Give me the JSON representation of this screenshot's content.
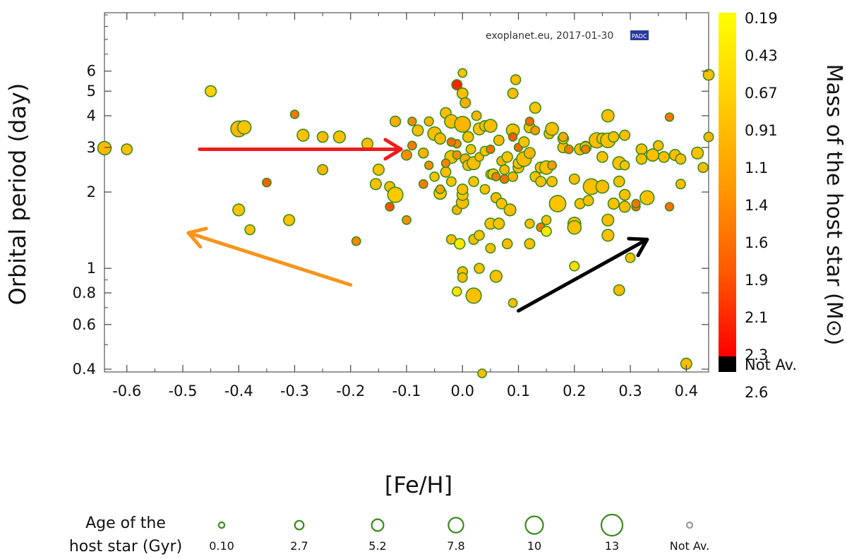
{
  "chart_data": {
    "type": "scatter",
    "xlabel": "[Fe/H]",
    "ylabel": "Orbital period (day)",
    "xlim": [
      -0.64,
      0.44
    ],
    "ylim": [
      0.39,
      10.2
    ],
    "yscale": "log",
    "xticks": [
      "-0.6",
      "-0.5",
      "-0.4",
      "-0.3",
      "-0.2",
      "-0.1",
      "0.0",
      "0.1",
      "0.2",
      "0.3",
      "0.4"
    ],
    "xtick_values": [
      -0.6,
      -0.5,
      -0.4,
      -0.3,
      -0.2,
      -0.1,
      0.0,
      0.1,
      0.2,
      0.3,
      0.4
    ],
    "yticks": [
      "6",
      "5",
      "4",
      "3",
      "2",
      "1",
      "0.8",
      "0.6",
      "0.4"
    ],
    "ytick_values": [
      6,
      5,
      4,
      3,
      2,
      1,
      0.8,
      0.6,
      0.4
    ],
    "watermark": "exoplanet.eu, 2017-01-30",
    "watermark_logo": "PADC",
    "colorbar": {
      "title": "Mass of the host star (M⊙)",
      "labels": [
        "0.19",
        "0.43",
        "0.67",
        "0.91",
        "1.1",
        "1.4",
        "1.6",
        "1.9",
        "2.1",
        "2.3",
        "2.6",
        "Not Av."
      ],
      "colors": [
        "#ffff00",
        "#ffd000",
        "#ff9a00",
        "#ff5a00",
        "#ff0000",
        "#000000"
      ]
    },
    "size_legend": {
      "title_line1": "Age of the",
      "title_line2": "host star (Gyr)",
      "entries": [
        {
          "label": "0.10",
          "age": 0.1
        },
        {
          "label": "2.7",
          "age": 2.7
        },
        {
          "label": "5.2",
          "age": 5.2
        },
        {
          "label": "7.8",
          "age": 7.8
        },
        {
          "label": "10",
          "age": 10
        },
        {
          "label": "13",
          "age": 13
        },
        {
          "label": "Not Av.",
          "age": null
        }
      ]
    },
    "arrows": [
      {
        "color": "#ee1c1c",
        "from": [
          -0.47,
          2.95
        ],
        "to": [
          -0.11,
          2.95
        ]
      },
      {
        "color": "#f7941d",
        "from": [
          -0.2,
          0.86
        ],
        "to": [
          -0.49,
          1.38
        ]
      },
      {
        "color": "#000000",
        "from": [
          0.1,
          0.68
        ],
        "to": [
          0.33,
          1.3
        ]
      }
    ],
    "points": [
      [
        -0.64,
        2.98,
        0.78,
        6.5
      ],
      [
        -0.6,
        2.95,
        0.72,
        4.2
      ],
      [
        -0.45,
        5.0,
        0.6,
        4.5
      ],
      [
        -0.4,
        3.55,
        0.78,
        8.5
      ],
      [
        -0.39,
        3.6,
        0.7,
        6.5
      ],
      [
        -0.4,
        1.7,
        0.7,
        5.0
      ],
      [
        -0.38,
        1.42,
        0.7,
        3.5
      ],
      [
        -0.35,
        2.18,
        1.55,
        2.5
      ],
      [
        -0.3,
        4.05,
        1.35,
        2.2
      ],
      [
        -0.31,
        1.55,
        0.7,
        4.5
      ],
      [
        -0.285,
        3.35,
        0.72,
        5.2
      ],
      [
        -0.25,
        3.3,
        0.75,
        4.2
      ],
      [
        -0.25,
        2.45,
        0.8,
        3.8
      ],
      [
        -0.22,
        3.3,
        0.72,
        5.2
      ],
      [
        -0.19,
        1.28,
        1.2,
        2.5
      ],
      [
        -0.17,
        3.1,
        0.75,
        4.5
      ],
      [
        -0.155,
        2.15,
        0.72,
        4.5
      ],
      [
        -0.15,
        2.45,
        0.7,
        4.5
      ],
      [
        -0.13,
        2.1,
        0.75,
        3.8
      ],
      [
        -0.13,
        1.75,
        1.7,
        2.5
      ],
      [
        -0.12,
        1.95,
        0.65,
        8.0
      ],
      [
        -0.12,
        3.8,
        0.85,
        4.0
      ],
      [
        -0.1,
        2.8,
        1.1,
        3.8
      ],
      [
        -0.09,
        3.8,
        1.15,
        2.2
      ],
      [
        -0.1,
        1.55,
        1.1,
        2.5
      ],
      [
        -0.09,
        3.05,
        1.3,
        2.5
      ],
      [
        -0.08,
        3.5,
        0.75,
        4.5
      ],
      [
        -0.07,
        2.85,
        0.8,
        3.5
      ],
      [
        -0.07,
        2.15,
        1.3,
        2.5
      ],
      [
        -0.06,
        2.55,
        1.1,
        2.2
      ],
      [
        -0.06,
        3.8,
        0.8,
        2.8
      ],
      [
        -0.05,
        2.3,
        0.7,
        3.0
      ],
      [
        -0.05,
        3.4,
        0.75,
        6.5
      ],
      [
        -0.04,
        1.98,
        0.65,
        5.5
      ],
      [
        -0.04,
        3.25,
        0.75,
        4.5
      ],
      [
        -0.04,
        2.05,
        0.95,
        2.5
      ],
      [
        -0.03,
        2.4,
        0.75,
        3.8
      ],
      [
        -0.03,
        4.1,
        0.75,
        4.2
      ],
      [
        -0.02,
        3.8,
        0.75,
        6.5
      ],
      [
        -0.02,
        2.75,
        0.72,
        6.0
      ],
      [
        -0.02,
        1.3,
        0.75,
        3.2
      ],
      [
        -0.02,
        2.2,
        0.7,
        3.2
      ],
      [
        -0.01,
        2.8,
        1.1,
        2.3
      ],
      [
        -0.01,
        3.1,
        1.2,
        2.2
      ],
      [
        -0.01,
        5.3,
        2.2,
        3.8
      ],
      [
        -0.01,
        1.7,
        0.8,
        3.0
      ],
      [
        -0.005,
        1.25,
        0.4,
        4.0
      ],
      [
        0.0,
        3.7,
        0.8,
        8.5
      ],
      [
        0.0,
        1.82,
        0.75,
        5.5
      ],
      [
        0.0,
        1.95,
        0.7,
        4.5
      ],
      [
        0.0,
        2.05,
        0.72,
        4.0
      ],
      [
        0.0,
        4.9,
        0.72,
        4.2
      ],
      [
        0.0,
        5.9,
        0.7,
        2.5
      ],
      [
        0.0,
        0.97,
        0.7,
        3.5
      ],
      [
        0.0,
        0.92,
        0.75,
        3.2
      ],
      [
        -0.01,
        0.81,
        0.45,
        3.0
      ],
      [
        0.005,
        4.5,
        0.85,
        3.8
      ],
      [
        0.005,
        2.7,
        0.85,
        3.8
      ],
      [
        0.01,
        3.3,
        0.72,
        4.2
      ],
      [
        0.01,
        2.55,
        0.75,
        4.0
      ],
      [
        0.015,
        2.95,
        0.7,
        3.2
      ],
      [
        0.02,
        1.3,
        0.75,
        3.5
      ],
      [
        0.02,
        0.78,
        0.72,
        8.0
      ],
      [
        0.02,
        2.2,
        0.7,
        3.5
      ],
      [
        0.02,
        2.6,
        0.75,
        6.0
      ],
      [
        0.025,
        4.0,
        0.8,
        3.2
      ],
      [
        0.03,
        1.35,
        0.7,
        3.5
      ],
      [
        0.03,
        2.75,
        0.75,
        2.5
      ],
      [
        0.03,
        3.5,
        0.9,
        2.5
      ],
      [
        0.03,
        3.55,
        0.7,
        5.2
      ],
      [
        0.03,
        1.0,
        0.7,
        3.5
      ],
      [
        0.035,
        0.385,
        0.75,
        2.5
      ],
      [
        0.04,
        3.65,
        0.75,
        4.0
      ],
      [
        0.04,
        2.9,
        0.7,
        3.2
      ],
      [
        0.04,
        2.05,
        0.72,
        3.2
      ],
      [
        0.05,
        3.65,
        0.75,
        6.0
      ],
      [
        0.05,
        2.95,
        1.4,
        2.2
      ],
      [
        0.05,
        2.35,
        0.85,
        3.0
      ],
      [
        0.05,
        1.5,
        0.7,
        4.5
      ],
      [
        0.05,
        1.2,
        0.72,
        3.2
      ],
      [
        0.055,
        2.35,
        0.72,
        4.2
      ],
      [
        0.06,
        0.93,
        0.72,
        5.2
      ],
      [
        0.06,
        1.9,
        0.75,
        3.8
      ],
      [
        0.065,
        3.2,
        0.75,
        3.8
      ],
      [
        0.065,
        1.5,
        0.7,
        4.5
      ],
      [
        0.07,
        2.65,
        0.8,
        3.2
      ],
      [
        0.07,
        1.8,
        0.72,
        4.0
      ],
      [
        0.075,
        2.25,
        1.4,
        2.5
      ],
      [
        0.075,
        2.45,
        0.75,
        3.2
      ],
      [
        0.08,
        2.75,
        0.7,
        4.0
      ],
      [
        0.08,
        1.25,
        0.75,
        3.5
      ],
      [
        0.085,
        1.7,
        0.75,
        5.0
      ],
      [
        0.09,
        3.5,
        0.72,
        6.0
      ],
      [
        0.09,
        2.3,
        0.8,
        3.2
      ],
      [
        0.09,
        4.9,
        0.75,
        3.8
      ],
      [
        0.09,
        0.73,
        0.75,
        2.5
      ],
      [
        0.095,
        5.55,
        0.75,
        3.5
      ],
      [
        0.1,
        3.0,
        1.5,
        2.2
      ],
      [
        0.1,
        2.5,
        0.72,
        4.2
      ],
      [
        0.1,
        2.6,
        0.72,
        4.0
      ],
      [
        0.11,
        2.7,
        0.75,
        7.5
      ],
      [
        0.11,
        3.15,
        0.7,
        4.0
      ],
      [
        0.12,
        3.6,
        0.72,
        4.5
      ],
      [
        0.12,
        2.85,
        0.8,
        4.5
      ],
      [
        0.12,
        1.5,
        0.72,
        3.0
      ],
      [
        0.12,
        3.8,
        1.5,
        2.2
      ],
      [
        0.12,
        1.25,
        0.72,
        3.8
      ],
      [
        0.13,
        4.3,
        0.7,
        4.5
      ],
      [
        0.13,
        2.3,
        0.72,
        3.8
      ],
      [
        0.14,
        2.5,
        0.72,
        4.5
      ],
      [
        0.14,
        2.2,
        0.72,
        3.8
      ],
      [
        0.14,
        1.45,
        1.3,
        2.5
      ],
      [
        0.15,
        1.55,
        0.7,
        3.0
      ],
      [
        0.15,
        1.4,
        0.4,
        3.5
      ],
      [
        0.15,
        2.5,
        0.72,
        6.5
      ],
      [
        0.155,
        3.4,
        0.72,
        3.8
      ],
      [
        0.16,
        3.55,
        0.75,
        6.0
      ],
      [
        0.16,
        2.2,
        0.72,
        3.8
      ],
      [
        0.17,
        1.8,
        0.7,
        9.0
      ],
      [
        0.18,
        3.0,
        0.75,
        4.2
      ],
      [
        0.18,
        3.25,
        0.72,
        4.0
      ],
      [
        0.19,
        2.95,
        1.3,
        2.5
      ],
      [
        0.2,
        1.5,
        0.72,
        6.0
      ],
      [
        0.2,
        1.45,
        0.72,
        6.5
      ],
      [
        0.2,
        2.25,
        0.75,
        3.8
      ],
      [
        0.2,
        1.02,
        0.5,
        3.2
      ],
      [
        0.21,
        1.8,
        0.72,
        3.8
      ],
      [
        0.21,
        2.95,
        0.75,
        4.5
      ],
      [
        0.22,
        3.05,
        1.2,
        2.5
      ],
      [
        0.22,
        3.0,
        0.72,
        4.5
      ],
      [
        0.225,
        1.85,
        0.72,
        3.8
      ],
      [
        0.23,
        2.1,
        0.72,
        8.5
      ],
      [
        0.24,
        3.2,
        0.75,
        8.0
      ],
      [
        0.25,
        3.25,
        0.72,
        4.5
      ],
      [
        0.25,
        2.1,
        0.75,
        6.0
      ],
      [
        0.25,
        2.75,
        0.72,
        4.2
      ],
      [
        0.26,
        1.35,
        0.72,
        5.0
      ],
      [
        0.26,
        1.55,
        0.75,
        5.0
      ],
      [
        0.26,
        3.2,
        0.72,
        7.5
      ],
      [
        0.26,
        4.0,
        0.75,
        5.5
      ],
      [
        0.27,
        1.8,
        0.72,
        4.5
      ],
      [
        0.27,
        3.3,
        0.72,
        4.0
      ],
      [
        0.28,
        2.2,
        0.72,
        4.2
      ],
      [
        0.28,
        2.6,
        0.72,
        6.0
      ],
      [
        0.28,
        0.82,
        0.75,
        4.2
      ],
      [
        0.29,
        2.55,
        0.7,
        3.0
      ],
      [
        0.29,
        3.35,
        0.75,
        3.8
      ],
      [
        0.29,
        1.75,
        0.75,
        4.5
      ],
      [
        0.29,
        1.95,
        0.72,
        4.2
      ],
      [
        0.3,
        1.1,
        0.72,
        3.2
      ],
      [
        0.31,
        1.75,
        1.4,
        2.2
      ],
      [
        0.31,
        1.8,
        1.4,
        2.2
      ],
      [
        0.32,
        2.95,
        0.72,
        4.2
      ],
      [
        0.32,
        2.7,
        0.72,
        4.0
      ],
      [
        0.33,
        1.9,
        0.72,
        7.0
      ],
      [
        0.34,
        2.8,
        0.72,
        5.5
      ],
      [
        0.35,
        3.05,
        0.72,
        3.5
      ],
      [
        0.36,
        2.75,
        0.75,
        4.2
      ],
      [
        0.37,
        1.75,
        1.4,
        2.2
      ],
      [
        0.37,
        3.95,
        1.35,
        2.2
      ],
      [
        0.38,
        2.8,
        0.75,
        4.5
      ],
      [
        0.39,
        2.7,
        0.72,
        3.8
      ],
      [
        0.39,
        2.15,
        0.75,
        3.2
      ],
      [
        0.4,
        0.42,
        0.75,
        4.5
      ],
      [
        0.42,
        2.85,
        0.72,
        5.0
      ],
      [
        0.43,
        2.5,
        0.75,
        3.5
      ],
      [
        0.44,
        3.3,
        0.8,
        3.2
      ],
      [
        0.44,
        5.8,
        0.72,
        4.2
      ],
      [
        -0.03,
        2.6,
        1.2,
        2.2
      ],
      [
        0.06,
        2.3,
        1.3,
        2.2
      ],
      [
        0.13,
        3.5,
        1.0,
        2.5
      ],
      [
        0.16,
        2.55,
        1.0,
        2.5
      ],
      [
        0.09,
        3.3,
        1.6,
        2.2
      ],
      [
        -0.02,
        3.15,
        1.4,
        2.2
      ],
      [
        0.22,
        2.95,
        1.3,
        2.2
      ],
      [
        0.18,
        3.3,
        0.9,
        2.8
      ]
    ]
  }
}
